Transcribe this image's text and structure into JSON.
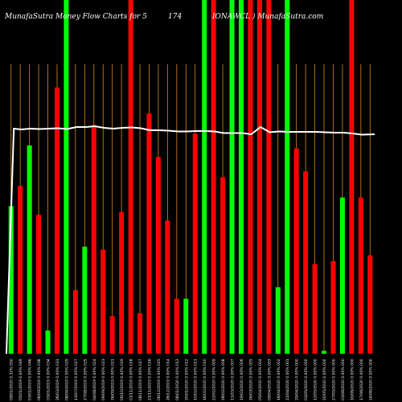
{
  "header": {
    "left": "MunafaSutra  Money Flow  Charts for 5",
    "mid": "174",
    "right": "IONAWCL   ) MunafaSutra.com"
  },
  "colors": {
    "background": "#000000",
    "up": "#00ff00",
    "down": "#ff0000",
    "grid": "#d98c1a",
    "line": "#ffffff"
  },
  "chart_data": {
    "type": "bar",
    "ylim": [
      0,
      100
    ],
    "bars": [
      {
        "label": "09/01/2020 0.32% 050",
        "value": 51,
        "color": "up"
      },
      {
        "label": "05/01/2019 0.00% 049",
        "value": 58,
        "color": "down"
      },
      {
        "label": "03/01/2019 0.00% 046",
        "value": 72,
        "color": "up"
      },
      {
        "label": "06/09/2019 0.00% 038",
        "value": 48,
        "color": "down"
      },
      {
        "label": "03/01/2019 0.00% 034",
        "value": 8,
        "color": "up"
      },
      {
        "label": "26/03/2019 0.00% 031",
        "value": 92,
        "color": "down"
      },
      {
        "label": "08/04/2019 0.00% 029",
        "value": 100,
        "color": "up"
      },
      {
        "label": "13/07/2019 0.00% 027",
        "value": 22,
        "color": "down"
      },
      {
        "label": "27/08/2019 0.00% 025",
        "value": 37,
        "color": "up"
      },
      {
        "label": "04/08/2019 0.00% 024",
        "value": 79,
        "color": "down"
      },
      {
        "label": "09/09/2019 0.00% 023",
        "value": 36,
        "color": "down"
      },
      {
        "label": "26/09/2019 0.00% 021",
        "value": 13,
        "color": "down"
      },
      {
        "label": "09/10/2019 0.00% 019",
        "value": 49,
        "color": "down"
      },
      {
        "label": "01/11/2019 0.00% 018",
        "value": 100,
        "color": "down"
      },
      {
        "label": "08/11/2019 0.00% 017",
        "value": 14,
        "color": "down"
      },
      {
        "label": "21/11/2019 0.00% 016",
        "value": 83,
        "color": "down"
      },
      {
        "label": "06/12/2019 0.00% 015",
        "value": 68,
        "color": "down"
      },
      {
        "label": "26/12/2019 0.00% 014",
        "value": 46,
        "color": "down"
      },
      {
        "label": "08/01/2020 0.00% 013",
        "value": 19,
        "color": "down"
      },
      {
        "label": "20/01/2020 0.00% 012",
        "value": 19,
        "color": "up"
      },
      {
        "label": "10/02/2020 0.00% 011",
        "value": 76,
        "color": "down"
      },
      {
        "label": "16/02/2020 0.00% 010",
        "value": 100,
        "color": "up"
      },
      {
        "label": "22/02/2020 0.00% 009",
        "value": 100,
        "color": "down"
      },
      {
        "label": "28/02/2020 0.00% 008",
        "value": 61,
        "color": "down"
      },
      {
        "label": "11/03/2020 0.00% 007",
        "value": 100,
        "color": "up"
      },
      {
        "label": "19/03/2020 0.00% 006",
        "value": 100,
        "color": "up"
      },
      {
        "label": "26/03/2020 0.00% 005",
        "value": 100,
        "color": "down"
      },
      {
        "label": "05/04/2020 0.00% 004",
        "value": 100,
        "color": "down"
      },
      {
        "label": "09/04/2020 0.00% 003",
        "value": 100,
        "color": "down"
      },
      {
        "label": "16/04/2020 0.00% 002",
        "value": 23,
        "color": "up"
      },
      {
        "label": "21/04/2020 0.00% 001",
        "value": 100,
        "color": "up"
      },
      {
        "label": "29/04/2020 0.00% 000",
        "value": 71,
        "color": "down"
      },
      {
        "label": "03/05/2020 0.00% 000",
        "value": 63,
        "color": "down"
      },
      {
        "label": "12/05/2020 0.00% 000",
        "value": 31,
        "color": "down"
      },
      {
        "label": "20/05/2020 0.00% 000",
        "value": 1,
        "color": "up"
      },
      {
        "label": "27/05/2020 0.00% 000",
        "value": 32,
        "color": "down"
      },
      {
        "label": "03/06/2020 0.00% 000",
        "value": 54,
        "color": "up"
      },
      {
        "label": "10/06/2020 0.00% 000",
        "value": 100,
        "color": "down"
      },
      {
        "label": "17/06/2020 0.00% 000",
        "value": 54,
        "color": "down"
      },
      {
        "label": "24/06/2020 0.00% 000",
        "value": 34,
        "color": "down"
      }
    ],
    "line_values": [
      71,
      71,
      71.5,
      71.5,
      71.5,
      71,
      70,
      71,
      72.5,
      72.5,
      72,
      71.5,
      71.5,
      71.5,
      72,
      72.5,
      71.5,
      71,
      71.5,
      70,
      72,
      72,
      73,
      71.5,
      71,
      71,
      71.5,
      71.5,
      71.5,
      71.5,
      71,
      70.5,
      70.5,
      70,
      72.5,
      73,
      72.5,
      73,
      72,
      74,
      73.5,
      71.5,
      70.5,
      69.5,
      68.5,
      68.5,
      68,
      67.5,
      67,
      67,
      65,
      68,
      68.5,
      67.5,
      67.5,
      67,
      67,
      68,
      68.5,
      69,
      71,
      71,
      72,
      73,
      74.5,
      75,
      75.5,
      76,
      76
    ],
    "line_points": [
      [
        0,
        0
      ],
      [
        0.02,
        70
      ],
      [
        0.04,
        71
      ],
      [
        0.065,
        70
      ],
      [
        0.09,
        70.5
      ],
      [
        0.115,
        70
      ],
      [
        0.14,
        69.5
      ],
      [
        0.165,
        70.5
      ],
      [
        0.19,
        68
      ],
      [
        0.215,
        68
      ],
      [
        0.24,
        67
      ],
      [
        0.265,
        69
      ],
      [
        0.29,
        70
      ],
      [
        0.315,
        69
      ],
      [
        0.34,
        68.5
      ],
      [
        0.365,
        69.5
      ],
      [
        0.39,
        72
      ],
      [
        0.415,
        72
      ],
      [
        0.44,
        72.5
      ],
      [
        0.465,
        73.5
      ],
      [
        0.49,
        73.5
      ],
      [
        0.515,
        73
      ],
      [
        0.54,
        73
      ],
      [
        0.565,
        73.5
      ],
      [
        0.59,
        75.5
      ],
      [
        0.615,
        75.5
      ],
      [
        0.64,
        75.5
      ],
      [
        0.665,
        77
      ],
      [
        0.69,
        68
      ],
      [
        0.715,
        74.5
      ],
      [
        0.74,
        73.5
      ],
      [
        0.765,
        74
      ],
      [
        0.79,
        74
      ],
      [
        0.815,
        74
      ],
      [
        0.84,
        74
      ],
      [
        0.865,
        74.5
      ],
      [
        0.89,
        75
      ],
      [
        0.915,
        75
      ],
      [
        0.94,
        76
      ],
      [
        0.965,
        77.5
      ],
      [
        1.0,
        77
      ]
    ]
  }
}
